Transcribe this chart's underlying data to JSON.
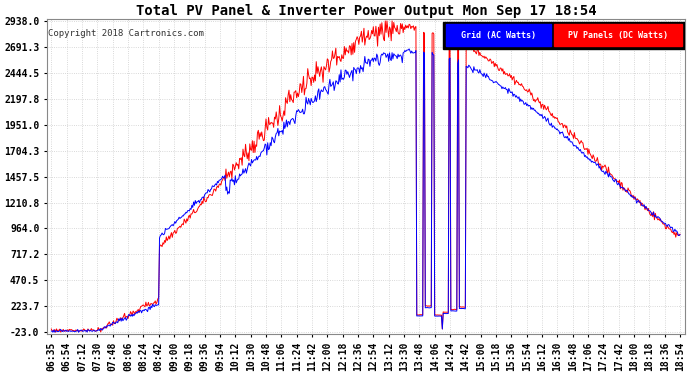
{
  "title": "Total PV Panel & Inverter Power Output Mon Sep 17 18:54",
  "copyright": "Copyright 2018 Cartronics.com",
  "legend_grid_label": "Grid (AC Watts)",
  "legend_pv_label": "PV Panels (DC Watts)",
  "grid_color": "#0000ff",
  "pv_color": "#ff0000",
  "background_color": "#ffffff",
  "plot_bg_color": "#ffffff",
  "grid_line_color": "#cccccc",
  "yticks": [
    -23.0,
    223.7,
    470.5,
    717.2,
    964.0,
    1210.8,
    1457.5,
    1704.3,
    1951.0,
    2197.8,
    2444.5,
    2691.3,
    2938.0
  ],
  "xtick_labels": [
    "06:35",
    "06:54",
    "07:12",
    "07:30",
    "07:48",
    "08:06",
    "08:24",
    "08:42",
    "09:00",
    "09:18",
    "09:36",
    "09:54",
    "10:12",
    "10:30",
    "10:48",
    "11:06",
    "11:24",
    "11:42",
    "12:00",
    "12:18",
    "12:36",
    "12:54",
    "13:12",
    "13:30",
    "13:48",
    "14:06",
    "14:24",
    "14:42",
    "15:00",
    "15:18",
    "15:36",
    "15:54",
    "16:12",
    "16:30",
    "16:48",
    "17:06",
    "17:24",
    "17:42",
    "18:00",
    "18:18",
    "18:36",
    "18:54"
  ],
  "ymin": -23.0,
  "ymax": 2938.0,
  "figsize": [
    6.9,
    3.75
  ],
  "dpi": 100
}
